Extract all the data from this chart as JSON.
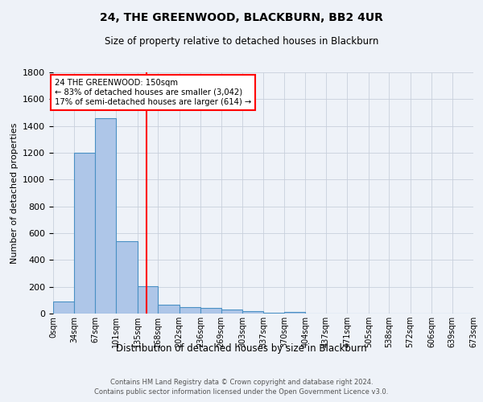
{
  "title1": "24, THE GREENWOOD, BLACKBURN, BB2 4UR",
  "title2": "Size of property relative to detached houses in Blackburn",
  "xlabel": "Distribution of detached houses by size in Blackburn",
  "ylabel": "Number of detached properties",
  "footer1": "Contains HM Land Registry data © Crown copyright and database right 2024.",
  "footer2": "Contains public sector information licensed under the Open Government Licence v3.0.",
  "annotation_line1": "24 THE GREENWOOD: 150sqm",
  "annotation_line2": "← 83% of detached houses are smaller (3,042)",
  "annotation_line3": "17% of semi-detached houses are larger (614) →",
  "property_size": 150,
  "bar_edges": [
    0,
    34,
    67,
    101,
    135,
    168,
    202,
    236,
    269,
    303,
    337,
    370,
    404,
    437,
    471,
    505,
    538,
    572,
    606,
    639,
    673
  ],
  "bar_heights": [
    90,
    1200,
    1460,
    540,
    205,
    65,
    50,
    40,
    28,
    20,
    8,
    15,
    0,
    0,
    0,
    0,
    0,
    0,
    0,
    0
  ],
  "bar_color": "#aec6e8",
  "bar_edge_color": "#4a90c4",
  "red_line_x": 150,
  "tick_labels": [
    "0sqm",
    "34sqm",
    "67sqm",
    "101sqm",
    "135sqm",
    "168sqm",
    "202sqm",
    "236sqm",
    "269sqm",
    "303sqm",
    "337sqm",
    "370sqm",
    "404sqm",
    "437sqm",
    "471sqm",
    "505sqm",
    "538sqm",
    "572sqm",
    "606sqm",
    "639sqm",
    "673sqm"
  ],
  "ylim": [
    0,
    1800
  ],
  "background_color": "#eef2f8",
  "grid_color": "#c8d0dc"
}
